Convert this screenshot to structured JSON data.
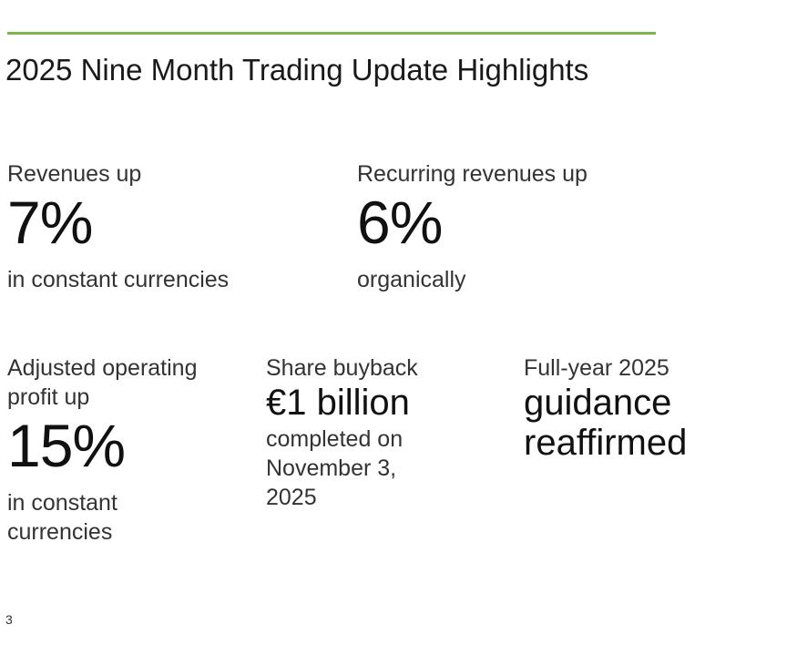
{
  "header": {
    "title": "2025 Nine Month Trading Update Highlights"
  },
  "highlights": [
    {
      "label": "Revenues up",
      "value": "7%",
      "note": "in constant currencies"
    },
    {
      "label": "Recurring revenues up",
      "value": "6%",
      "note": "organically"
    },
    {
      "label": "Adjusted operating profit up",
      "value": "15%",
      "note": "in constant currencies"
    },
    {
      "label": "Share buyback",
      "value": "€1 billion",
      "note": "completed on November 3, 2025"
    },
    {
      "label": "Full-year 2025",
      "value": "guidance reaffirmed"
    }
  ],
  "footer": {
    "page_number": "3"
  }
}
